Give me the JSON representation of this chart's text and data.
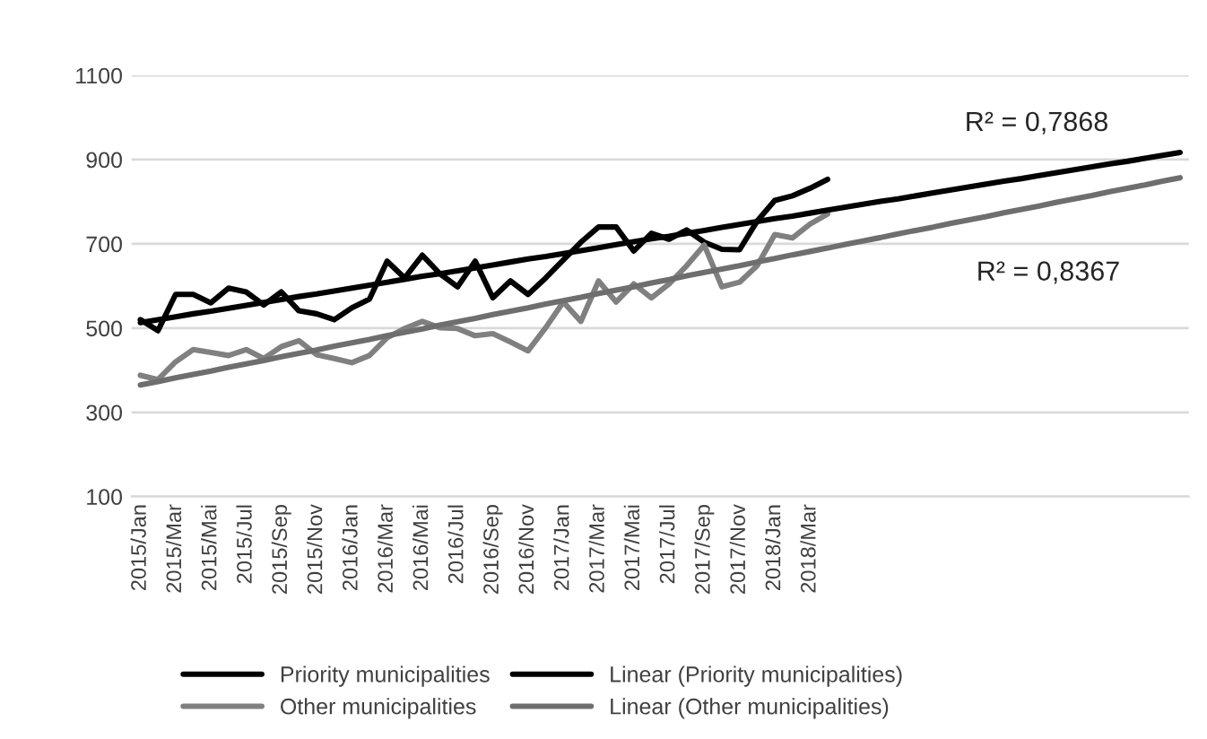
{
  "chart_data": {
    "type": "line",
    "categories": [
      "2015/Jan",
      null,
      "2015/Mar",
      null,
      "2015/Mai",
      null,
      "2015/Jul",
      null,
      "2015/Sep",
      null,
      "2015/Nov",
      null,
      "2016/Jan",
      null,
      "2016/Mar",
      null,
      "2016/Mai",
      null,
      "2016/Jul",
      null,
      "2016/Sep",
      null,
      "2016/Nov",
      null,
      "2017/Jan",
      null,
      "2017/Mar",
      null,
      "2017/Mai",
      null,
      "2017/Jul",
      null,
      "2017/Sep",
      null,
      "2017/Nov",
      null,
      "2018/Jan",
      null,
      "2018/Mar",
      null,
      null,
      null,
      null,
      null,
      null,
      null,
      null,
      null,
      null,
      null,
      null,
      null,
      null,
      null,
      null,
      null,
      null,
      null,
      null,
      null
    ],
    "series": [
      {
        "name": "Priority municipalities",
        "color": "#000000",
        "values": [
          520,
          494,
          580,
          580,
          560,
          595,
          586,
          555,
          586,
          541,
          534,
          520,
          548,
          569,
          659,
          619,
          673,
          629,
          598,
          659,
          572,
          612,
          580,
          619,
          662,
          704,
          740,
          740,
          683,
          725,
          711,
          733,
          704,
          687,
          686,
          754,
          803,
          814,
          832,
          853,
          null,
          null,
          null,
          null,
          null,
          null,
          null,
          null,
          null,
          null,
          null,
          null,
          null,
          null,
          null,
          null,
          null,
          null,
          null,
          null
        ]
      },
      {
        "name": "Other municipalities",
        "color": "#808080",
        "values": [
          388,
          378,
          420,
          449,
          442,
          435,
          449,
          428,
          456,
          470,
          437,
          428,
          418,
          435,
          477,
          499,
          516,
          501,
          499,
          482,
          487,
          467,
          446,
          501,
          562,
          516,
          612,
          562,
          605,
          572,
          605,
          648,
          697,
          598,
          609,
          648,
          722,
          714,
          747,
          771,
          null,
          null,
          null,
          null,
          null,
          null,
          null,
          null,
          null,
          null,
          null,
          null,
          null,
          null,
          null,
          null,
          null,
          null,
          null,
          null
        ]
      },
      {
        "name": "Linear (Priority municipalities)",
        "color": "#000000",
        "values": [
          513,
          520,
          527,
          534,
          540,
          547,
          554,
          561,
          568,
          575,
          581,
          588,
          595,
          602,
          609,
          616,
          623,
          629,
          636,
          643,
          650,
          657,
          664,
          670,
          677,
          684,
          691,
          698,
          705,
          712,
          718,
          725,
          732,
          739,
          746,
          753,
          760,
          766,
          773,
          780,
          787,
          794,
          801,
          807,
          814,
          821,
          828,
          835,
          842,
          849,
          855,
          862,
          869,
          876,
          883,
          890,
          896,
          903,
          910,
          917
        ]
      },
      {
        "name": "Linear (Other municipalities)",
        "color": "#6e6e6e",
        "values": [
          365,
          373,
          382,
          390,
          398,
          407,
          415,
          423,
          432,
          440,
          448,
          457,
          465,
          473,
          482,
          490,
          498,
          507,
          515,
          523,
          532,
          540,
          548,
          557,
          565,
          573,
          582,
          590,
          598,
          607,
          615,
          624,
          632,
          640,
          648,
          657,
          665,
          674,
          682,
          690,
          699,
          707,
          715,
          724,
          732,
          740,
          749,
          757,
          765,
          774,
          782,
          790,
          799,
          807,
          815,
          824,
          832,
          840,
          849,
          857
        ]
      }
    ],
    "ylim": [
      100,
      1100
    ],
    "yticks": [
      100,
      300,
      500,
      700,
      900,
      1100
    ],
    "grid": "y",
    "legend": "bottom",
    "annotations": [
      "R² = 0,7868",
      "R² = 0,8367"
    ]
  }
}
